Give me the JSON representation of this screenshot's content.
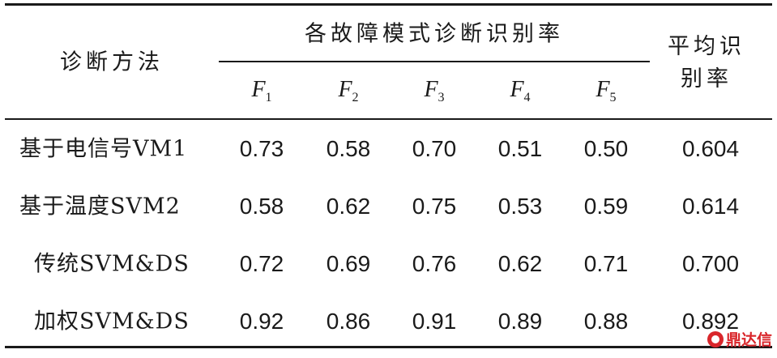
{
  "table": {
    "header": {
      "method": "诊断方法",
      "group": "各故障模式诊断识别率",
      "modes": [
        {
          "letter": "F",
          "index": "1"
        },
        {
          "letter": "F",
          "index": "2"
        },
        {
          "letter": "F",
          "index": "3"
        },
        {
          "letter": "F",
          "index": "4"
        },
        {
          "letter": "F",
          "index": "5"
        }
      ],
      "average_line1": "平均识",
      "average_line2": "别率"
    },
    "rows": [
      {
        "method": "基于电信号VM1",
        "values": [
          "0.73",
          "0.58",
          "0.70",
          "0.51",
          "0.50"
        ],
        "average": "0.604"
      },
      {
        "method": "基于温度SVM2",
        "values": [
          "0.58",
          "0.62",
          "0.75",
          "0.53",
          "0.59"
        ],
        "average": "0.614"
      },
      {
        "method": "传统SVM&DS",
        "values": [
          "0.72",
          "0.69",
          "0.76",
          "0.62",
          "0.71"
        ],
        "average": "0.700"
      },
      {
        "method": "加权SVM&DS",
        "values": [
          "0.92",
          "0.86",
          "0.91",
          "0.89",
          "0.88"
        ],
        "average": "0.892"
      }
    ]
  },
  "watermark": {
    "text": "鼎达信",
    "color": "#d9262b"
  }
}
